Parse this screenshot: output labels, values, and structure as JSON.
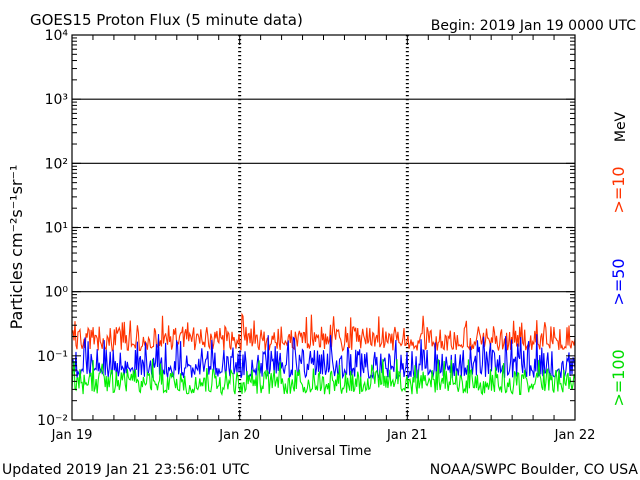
{
  "title": "GOES15 Proton Flux (5 minute data)",
  "begin": "Begin: 2019 Jan 19 0000 UTC",
  "updated": "Updated 2019 Jan 21 23:56:01 UTC",
  "credit": "NOAA/SWPC Boulder, CO USA",
  "chart_data": {
    "type": "line",
    "xlabel": "Universal Time",
    "ylabel": "Particles cm⁻²s⁻¹sr⁻¹",
    "x_ticks": [
      "Jan 19",
      "Jan 20",
      "Jan 21",
      "Jan 22"
    ],
    "x_range_days": [
      0,
      3
    ],
    "y_scale": "log",
    "ylim": [
      0.01,
      10000
    ],
    "y_ticks": [
      "10⁻²",
      "10⁻¹",
      "10⁰",
      "10¹",
      "10²",
      "10³",
      "10⁴"
    ],
    "y_tick_values": [
      0.01,
      0.1,
      1,
      10,
      100,
      1000,
      10000
    ],
    "reference_lines": [
      {
        "value": 1,
        "style": "solid"
      },
      {
        "value": 10,
        "style": "dashed"
      },
      {
        "value": 100,
        "style": "solid"
      },
      {
        "value": 1000,
        "style": "solid"
      }
    ],
    "unit_label": "MeV",
    "series": [
      {
        "name": ">=10",
        "color": "#ff3300",
        "typical": 0.17,
        "min": 0.12,
        "max": 0.45
      },
      {
        "name": ">=50",
        "color": "#0000ff",
        "typical": 0.065,
        "min": 0.045,
        "max": 0.22
      },
      {
        "name": ">=100",
        "color": "#00ee00",
        "typical": 0.04,
        "min": 0.025,
        "max": 0.09
      }
    ]
  }
}
